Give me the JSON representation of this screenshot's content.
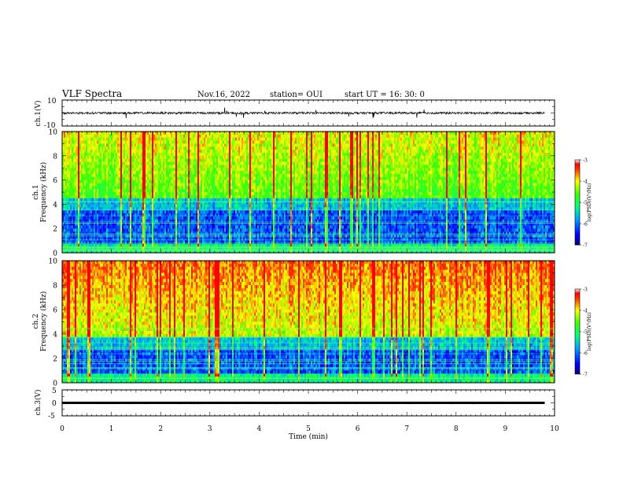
{
  "header": {
    "title": "VLF Spectra",
    "date": "Nov.16, 2022",
    "station": "station= OUI",
    "start": "start  UT =   16: 30: 0"
  },
  "chart_data": [
    {
      "type": "line",
      "name": "ch1-waveform",
      "ylabel": "ch.1(V)",
      "ylim": [
        -10,
        10
      ],
      "ytick_labels": [
        "10",
        "-10"
      ],
      "xlim": [
        0,
        10
      ],
      "signal": "noise waveform centered near 0 V, amplitude about ±1 V with sporadic spikes"
    },
    {
      "type": "heatmap",
      "name": "ch1-spectrogram",
      "ylabel": "ch.1\nFrequency  (kHz)",
      "ylim": [
        0,
        10
      ],
      "ytick_labels": [
        "0",
        "2",
        "4",
        "6",
        "8",
        "10"
      ],
      "xlim": [
        0,
        10
      ],
      "colorbar": {
        "label": "log(PSD)(V²/Hz)",
        "range": [
          -7,
          -3
        ],
        "tick_labels": [
          "-3",
          "-4",
          "-5",
          "-6",
          "-7"
        ]
      }
    },
    {
      "type": "heatmap",
      "name": "ch2-spectrogram",
      "ylabel": "ch.2\nFrequency  (kHz)",
      "ylim": [
        0,
        10
      ],
      "ytick_labels": [
        "0",
        "2",
        "4",
        "6",
        "8",
        "10"
      ],
      "xlim": [
        0,
        10
      ],
      "colorbar": {
        "label": "log(PSD)(V²/Hz)",
        "range": [
          -7,
          -3
        ],
        "tick_labels": [
          "-3",
          "-4",
          "-5",
          "-6",
          "-7"
        ]
      }
    },
    {
      "type": "line",
      "name": "ch3-waveform",
      "ylabel": "ch.3(V)",
      "ylim": [
        -5,
        5
      ],
      "ytick_labels": [
        "5",
        "0",
        "-5"
      ],
      "xlim": [
        0,
        10
      ],
      "xlabel": "Time  (min)",
      "xtick_labels": [
        "0",
        "1",
        "2",
        "3",
        "4",
        "5",
        "6",
        "7",
        "8",
        "9",
        "10"
      ],
      "signal": "flat line at about -0.3 V"
    }
  ]
}
